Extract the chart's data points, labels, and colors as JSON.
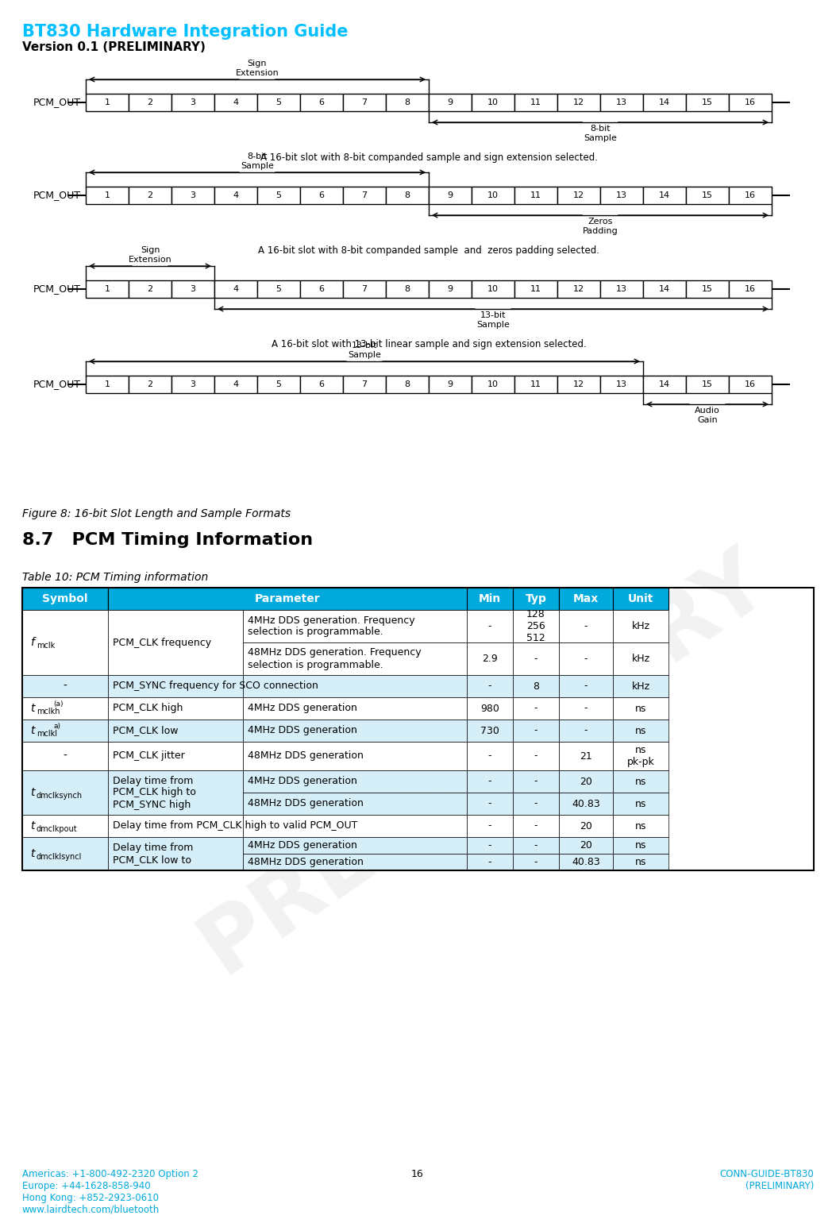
{
  "title": "BT830 Hardware Integration Guide",
  "subtitle": "Version 0.1 (PRELIMINARY)",
  "title_color": "#00BFFF",
  "fig_caption": "Figure 8: 16-bit Slot Length and Sample Formats",
  "section_title": "8.7   PCM Timing Information",
  "table_title": "Table 10: PCM Timing information",
  "header_bg": "#00AADD",
  "row_alt_bg": "#D6EEF8",
  "row_bg": "#FFFFFF",
  "footer_left": "Americas: +1-800-492-2320 Option 2\nEurope: +44-1628-858-940\nHong Kong: +852-2923-0610\nwww.lairdtech.com/bluetooth",
  "footer_center": "16",
  "footer_right": "CONN-GUIDE-BT830\n(PRELIMINARY)",
  "diagrams": [
    {
      "label": "PCM_OUT",
      "bracket_top": {
        "label": "Sign\nExtension",
        "start": 0,
        "end": 8
      },
      "bracket_bottom": {
        "label": "8-bit\nSample",
        "start": 8,
        "end": 16
      },
      "caption": "A 16-bit slot with 8-bit companded sample and sign extension selected."
    },
    {
      "label": "PCM_OUT",
      "bracket_top": {
        "label": "8-bit\nSample",
        "start": 0,
        "end": 8
      },
      "bracket_bottom": {
        "label": "Zeros\nPadding",
        "start": 8,
        "end": 16
      },
      "caption": "A 16-bit slot with 8-bit companded sample  and  zeros padding selected."
    },
    {
      "label": "PCM_OUT",
      "bracket_top": {
        "label": "Sign\nExtension",
        "start": 0,
        "end": 3
      },
      "bracket_bottom": {
        "label": "13-bit\nSample",
        "start": 3,
        "end": 16
      },
      "caption": "A 16-bit slot with 13-bit linear sample and sign extension selected."
    },
    {
      "label": "PCM_OUT",
      "bracket_top": {
        "label": "13-bit\nSample",
        "start": 0,
        "end": 13
      },
      "bracket_bottom": {
        "label": "Audio\nGain",
        "start": 13,
        "end": 16
      },
      "caption": ""
    }
  ]
}
